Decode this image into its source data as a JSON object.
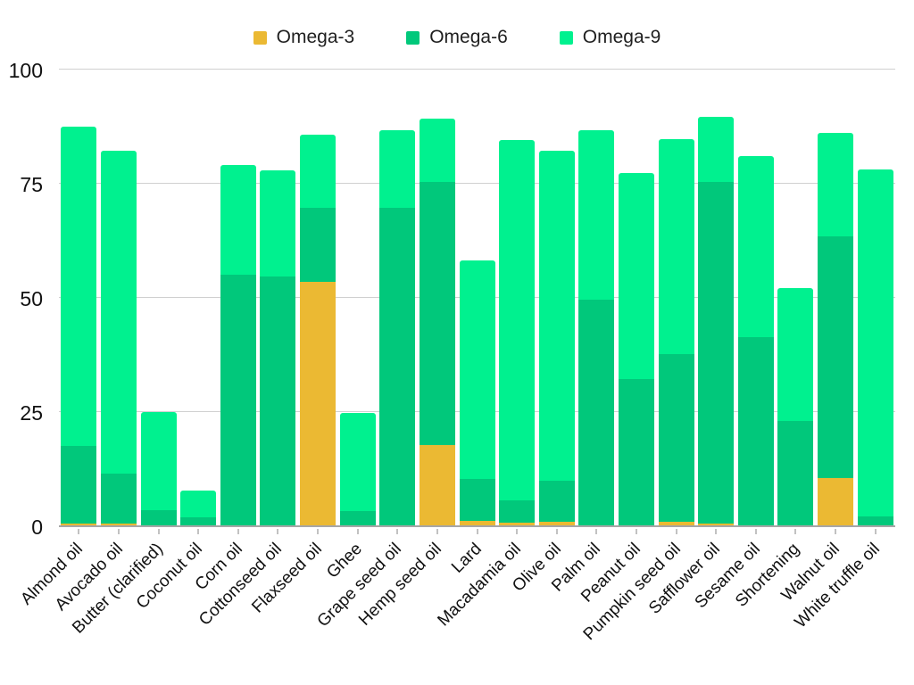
{
  "colors": {
    "background": "#ffffff",
    "omega3": "#ebb933",
    "omega6": "#01c87b",
    "omega9": "#00f18f",
    "gridline": "#d0d0d0",
    "baseline": "#a6a6a6",
    "text": "#1f1f1f"
  },
  "chart_data": {
    "type": "bar",
    "subtype": "stacked-vertical",
    "title": "",
    "xlabel": "",
    "ylabel": "",
    "grid": true,
    "legend_position": "top-center",
    "y_axis": {
      "min": 0,
      "max": 100,
      "ticks": [
        0,
        25,
        50,
        75,
        100
      ]
    },
    "categories": [
      "Almond oil",
      "Avocado oil",
      "Butter (clarified)",
      "Coconut oil",
      "Corn oil",
      "Cottonseed oil",
      "Flaxseed oil",
      "Ghee",
      "Grape seed oil",
      "Hemp seed oil",
      "Lard",
      "Macadamia oil",
      "Olive oil",
      "Palm oil",
      "Peanut oil",
      "Pumpkin seed oil",
      "Safflower oil",
      "Sesame oil",
      "Shortening",
      "Walnut oil",
      "White truffle oil"
    ],
    "series": [
      {
        "name": "Omega-3",
        "color": "#ebb933",
        "values": [
          0.4,
          0.4,
          0,
          0,
          0,
          0,
          53.3,
          0,
          0,
          17.6,
          1.0,
          0.5,
          0.8,
          0,
          0,
          0.8,
          0.4,
          0,
          0,
          10.4,
          0
        ]
      },
      {
        "name": "Omega-6",
        "color": "#01c87b",
        "values": [
          17.0,
          11.0,
          3.4,
          1.8,
          54.8,
          54.5,
          16.2,
          3.2,
          69.5,
          57.6,
          9.2,
          4.9,
          9.0,
          49.5,
          32.0,
          36.7,
          74.8,
          41.2,
          22.8,
          52.9,
          2.0
        ]
      },
      {
        "name": "Omega-9",
        "color": "#00f18f",
        "values": [
          70.0,
          70.6,
          21.4,
          5.8,
          24.2,
          23.3,
          16.0,
          21.4,
          17.0,
          13.8,
          47.9,
          78.9,
          72.2,
          37.0,
          45.2,
          47.0,
          14.2,
          39.6,
          29.2,
          22.7,
          76.0
        ]
      }
    ]
  }
}
